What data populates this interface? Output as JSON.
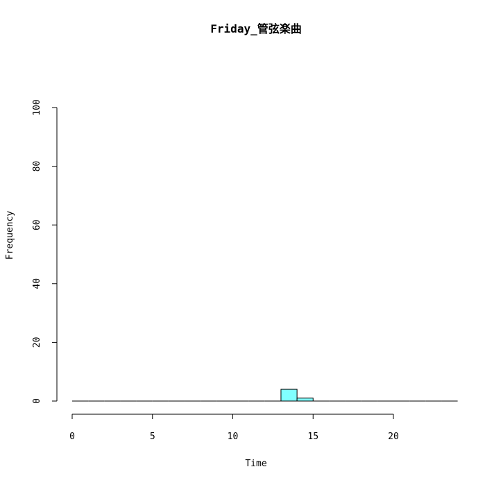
{
  "chart_data": {
    "type": "bar",
    "title": "Friday_管弦楽曲",
    "xlabel": "Time",
    "ylabel": "Frequency",
    "xlim": [
      0,
      24
    ],
    "ylim": [
      0,
      100
    ],
    "x_ticks": [
      0,
      5,
      10,
      15,
      20
    ],
    "y_ticks": [
      0,
      20,
      40,
      60,
      80,
      100
    ],
    "bin_width": 1,
    "bins": [
      {
        "start": 0,
        "end": 1,
        "value": 0
      },
      {
        "start": 1,
        "end": 2,
        "value": 0
      },
      {
        "start": 2,
        "end": 3,
        "value": 0
      },
      {
        "start": 3,
        "end": 4,
        "value": 0
      },
      {
        "start": 4,
        "end": 5,
        "value": 0
      },
      {
        "start": 5,
        "end": 6,
        "value": 0
      },
      {
        "start": 6,
        "end": 7,
        "value": 0
      },
      {
        "start": 7,
        "end": 8,
        "value": 0
      },
      {
        "start": 8,
        "end": 9,
        "value": 0
      },
      {
        "start": 9,
        "end": 10,
        "value": 0
      },
      {
        "start": 10,
        "end": 11,
        "value": 0
      },
      {
        "start": 11,
        "end": 12,
        "value": 0
      },
      {
        "start": 12,
        "end": 13,
        "value": 0
      },
      {
        "start": 13,
        "end": 14,
        "value": 4
      },
      {
        "start": 14,
        "end": 15,
        "value": 1
      },
      {
        "start": 15,
        "end": 16,
        "value": 0
      },
      {
        "start": 16,
        "end": 17,
        "value": 0
      },
      {
        "start": 17,
        "end": 18,
        "value": 0
      },
      {
        "start": 18,
        "end": 19,
        "value": 0
      },
      {
        "start": 19,
        "end": 20,
        "value": 0
      },
      {
        "start": 20,
        "end": 21,
        "value": 0
      },
      {
        "start": 21,
        "end": 22,
        "value": 0
      },
      {
        "start": 22,
        "end": 23,
        "value": 0
      },
      {
        "start": 23,
        "end": 24,
        "value": 0
      }
    ],
    "bar_color": "#80ffff",
    "grid": false,
    "legend": "none"
  }
}
